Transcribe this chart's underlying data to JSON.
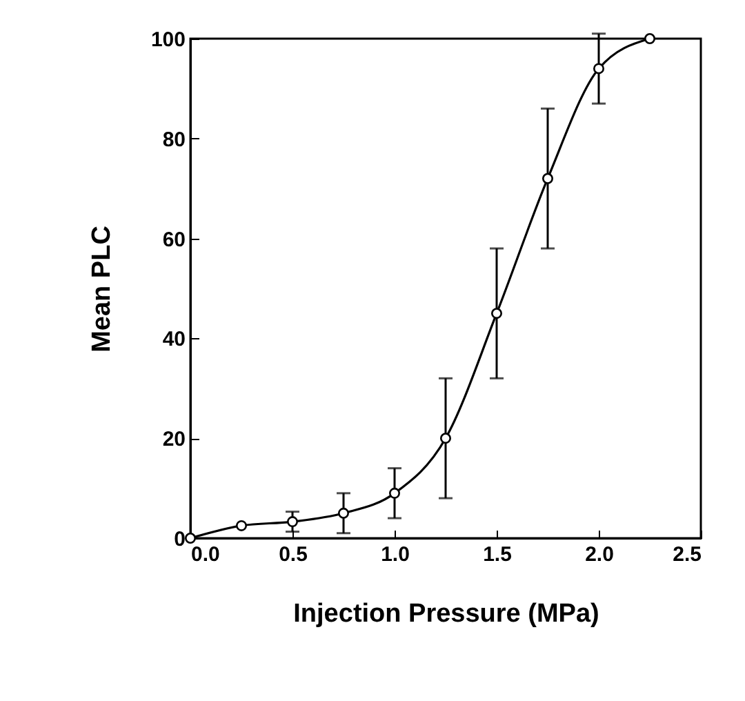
{
  "chart_data": {
    "type": "line",
    "xlabel": "Injection Pressure (MPa)",
    "ylabel": "Mean PLC",
    "x": [
      0,
      0.25,
      0.5,
      0.75,
      1.0,
      1.25,
      1.5,
      1.75,
      2.0,
      2.25
    ],
    "series": [
      {
        "color": "#000000",
        "values": [
          0,
          2.5,
          3.3,
          5,
          9,
          20,
          45,
          72,
          94,
          100
        ],
        "errors": [
          null,
          null,
          2,
          4,
          5,
          12,
          13,
          14,
          7,
          null
        ]
      }
    ],
    "xlim": [
      0,
      2.5
    ],
    "xticks": [
      {
        "value": 0,
        "label": "0.0"
      },
      {
        "value": 0.5,
        "label": "0.5"
      },
      {
        "value": 1,
        "label": "1.0"
      },
      {
        "value": 1.5,
        "label": "1.5"
      },
      {
        "value": 2,
        "label": "2.0"
      },
      {
        "value": 2.5,
        "label": "2.5"
      }
    ],
    "ylim": [
      0,
      100
    ],
    "yticks": [
      0,
      20,
      40,
      60,
      80,
      100
    ],
    "grid": false,
    "marker": "circle",
    "line_style": "solid"
  }
}
